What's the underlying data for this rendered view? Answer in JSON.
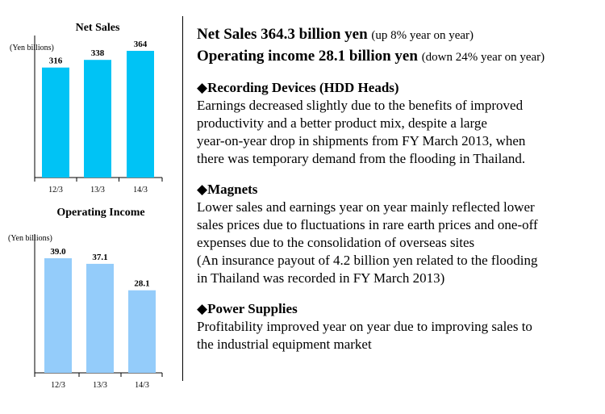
{
  "chart_data": [
    {
      "type": "bar",
      "title": "Net Sales",
      "unit": "(Yen billions)",
      "categories": [
        "12/3",
        "13/3",
        "14/3"
      ],
      "values": [
        316,
        338,
        364
      ],
      "labels": [
        "316",
        "338",
        "364"
      ],
      "ylim": [
        0,
        364
      ],
      "color": "#00c3f5"
    },
    {
      "type": "bar",
      "title": "Operating Income",
      "unit": "(Yen billions)",
      "categories": [
        "12/3",
        "13/3",
        "14/3"
      ],
      "values": [
        39.0,
        37.1,
        28.1
      ],
      "labels": [
        "39.0",
        "37.1",
        "28.1"
      ],
      "ylim": [
        0,
        39.0
      ],
      "color": "#94ccfa"
    }
  ],
  "headline": {
    "line1_main": "Net Sales 364.3 billion yen",
    "line1_sub": "(up 8% year on year)",
    "line2_main": "Operating income 28.1 billion yen",
    "line2_sub": "(down 24% year on year)"
  },
  "sections": [
    {
      "title": "◆Recording Devices (HDD Heads)",
      "lines": [
        "Earnings decreased slightly due to the benefits of improved",
        "productivity and a better product mix, despite a large",
        "year-on-year drop in shipments from FY March 2013, when",
        "there was temporary demand from the flooding in Thailand."
      ]
    },
    {
      "title": "◆Magnets",
      "lines": [
        "Lower sales and earnings year on year mainly reflected lower",
        "sales prices due to fluctuations in rare earth prices and one-off",
        "expenses due to the consolidation of overseas sites",
        "(An insurance payout of 4.2 billion yen related to the flooding",
        "in Thailand was recorded in FY March 2013)"
      ]
    },
    {
      "title": "◆Power Supplies",
      "lines": [
        "Profitability improved year on year due to improving sales to",
        "the industrial equipment market"
      ]
    }
  ]
}
